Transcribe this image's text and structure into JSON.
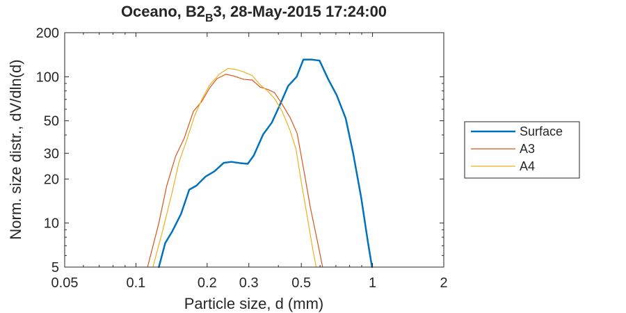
{
  "chart_data": {
    "type": "line",
    "title": "Oceano, B2",
    "title_subscript": "B",
    "title_suffix": "3, 28-May-2015 17:24:00",
    "xlabel": "Particle size, d (mm)",
    "ylabel": "Norm. size distr., dV/dln(d)",
    "x_scale": "log",
    "y_scale": "log",
    "xlim": [
      0.05,
      2
    ],
    "ylim": [
      5,
      200
    ],
    "x_ticks": [
      0.05,
      0.1,
      0.2,
      0.3,
      0.5,
      1,
      2
    ],
    "x_tick_labels": [
      "0.05",
      "0.1",
      "0.2",
      "0.3",
      "0.5",
      "1",
      "2"
    ],
    "y_ticks": [
      5,
      10,
      20,
      30,
      50,
      100,
      200
    ],
    "y_tick_labels": [
      "5",
      "10",
      "20",
      "30",
      "50",
      "100",
      "200"
    ],
    "grid": false,
    "legend_position": "outside-right",
    "series": [
      {
        "name": "Surface",
        "color": "#0072BD",
        "width": 2.5,
        "points": [
          [
            0.125,
            5.0
          ],
          [
            0.133,
            7.3
          ],
          [
            0.142,
            8.7
          ],
          [
            0.155,
            11.5
          ],
          [
            0.168,
            16.9
          ],
          [
            0.18,
            18.0
          ],
          [
            0.197,
            20.8
          ],
          [
            0.215,
            22.6
          ],
          [
            0.235,
            25.8
          ],
          [
            0.253,
            26.2
          ],
          [
            0.275,
            25.7
          ],
          [
            0.297,
            25.4
          ],
          [
            0.315,
            29.0
          ],
          [
            0.345,
            40.4
          ],
          [
            0.375,
            48.5
          ],
          [
            0.402,
            62.0
          ],
          [
            0.44,
            86.5
          ],
          [
            0.478,
            100.0
          ],
          [
            0.51,
            131.0
          ],
          [
            0.55,
            131.0
          ],
          [
            0.597,
            129.0
          ],
          [
            0.65,
            96.0
          ],
          [
            0.705,
            75.0
          ],
          [
            0.77,
            52.0
          ],
          [
            0.828,
            30.0
          ],
          [
            0.895,
            15.0
          ],
          [
            0.955,
            7.5
          ],
          [
            0.995,
            5.0
          ]
        ]
      },
      {
        "name": "A3",
        "color": "#D95319",
        "width": 1.2,
        "points": [
          [
            0.112,
            5.0
          ],
          [
            0.125,
            10.0
          ],
          [
            0.135,
            18.0
          ],
          [
            0.147,
            28.5
          ],
          [
            0.16,
            38.0
          ],
          [
            0.175,
            58.0
          ],
          [
            0.19,
            68.0
          ],
          [
            0.205,
            84.0
          ],
          [
            0.22,
            97.0
          ],
          [
            0.24,
            104.0
          ],
          [
            0.26,
            101.0
          ],
          [
            0.285,
            96.0
          ],
          [
            0.31,
            95.0
          ],
          [
            0.335,
            85.0
          ],
          [
            0.36,
            82.0
          ],
          [
            0.385,
            78.0
          ],
          [
            0.415,
            65.0
          ],
          [
            0.45,
            52.0
          ],
          [
            0.48,
            41.0
          ],
          [
            0.51,
            24.0
          ],
          [
            0.545,
            13.0
          ],
          [
            0.59,
            7.0
          ],
          [
            0.615,
            5.0
          ]
        ]
      },
      {
        "name": "A4",
        "color": "#EDB120",
        "width": 1.2,
        "points": [
          [
            0.118,
            5.0
          ],
          [
            0.13,
            9.0
          ],
          [
            0.142,
            16.0
          ],
          [
            0.152,
            26.0
          ],
          [
            0.164,
            37.0
          ],
          [
            0.177,
            54.0
          ],
          [
            0.19,
            70.0
          ],
          [
            0.205,
            88.0
          ],
          [
            0.225,
            104.0
          ],
          [
            0.245,
            114.0
          ],
          [
            0.265,
            112.0
          ],
          [
            0.285,
            108.0
          ],
          [
            0.31,
            102.0
          ],
          [
            0.335,
            88.0
          ],
          [
            0.36,
            80.0
          ],
          [
            0.385,
            71.0
          ],
          [
            0.415,
            58.0
          ],
          [
            0.448,
            43.0
          ],
          [
            0.475,
            32.0
          ],
          [
            0.5,
            19.0
          ],
          [
            0.53,
            11.0
          ],
          [
            0.56,
            6.5
          ],
          [
            0.578,
            5.0
          ]
        ]
      }
    ]
  }
}
